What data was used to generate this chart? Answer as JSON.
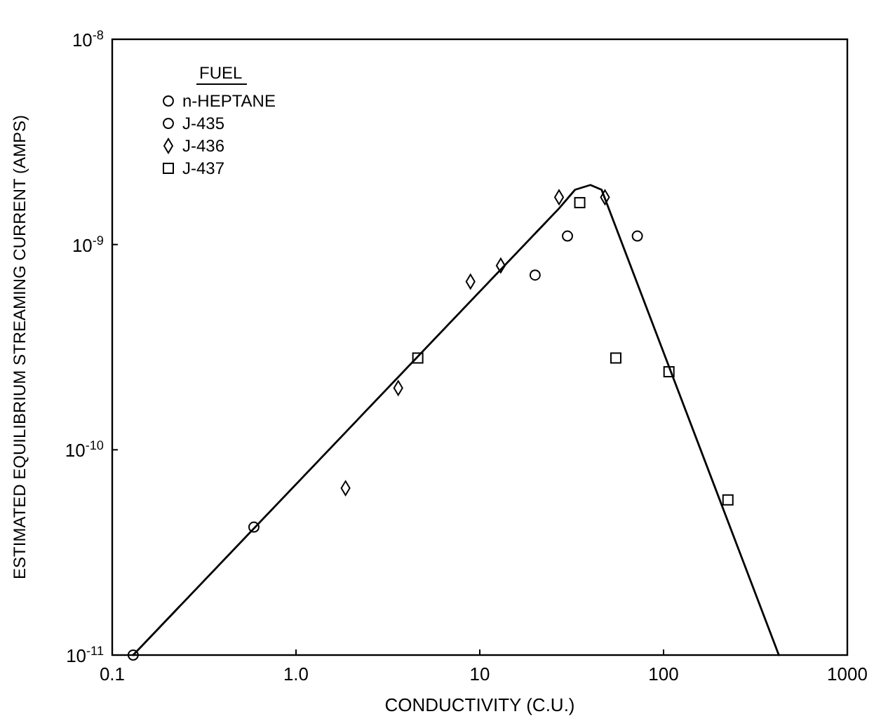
{
  "chart_data": {
    "type": "scatter",
    "xlabel": "CONDUCTIVITY (C.U.)",
    "ylabel": "ESTIMATED EQUILIBRIUM STREAMING CURRENT (AMPS)",
    "legend_title": "FUEL",
    "legend": "top left",
    "log": "xy",
    "grid": false,
    "xlim": [
      0.1,
      1000
    ],
    "xticks": [
      {
        "value": 0.1,
        "label": "0.1"
      },
      {
        "value": 1,
        "label": "1.0"
      },
      10,
      100,
      1000
    ],
    "ylim": [
      1e-11,
      1e-08
    ],
    "yticks": [
      {
        "value": 1e-11,
        "label": "10$^{-11}$"
      },
      {
        "value": 1e-10,
        "label": "10$^{-10}$"
      },
      {
        "value": 1e-09,
        "label": "10$^{-9}$"
      },
      {
        "value": 1e-08,
        "label": "10$^{-8}$"
      }
    ],
    "series": [
      {
        "name": "n-HEPTANE",
        "color": "#000000",
        "marker": "circle",
        "x": [
          0.13
        ],
        "values": [
          1e-11
        ]
      },
      {
        "name": "J-435",
        "color": "#000000",
        "marker": "circle",
        "x": [
          0.59,
          20,
          30,
          72
        ],
        "values": [
          4.2e-11,
          7.1e-10,
          1.1e-09,
          1.1e-09
        ]
      },
      {
        "name": "J-436",
        "color": "#000000",
        "marker": "diamond",
        "x": [
          1.86,
          3.6,
          8.9,
          13,
          27,
          48
        ],
        "values": [
          6.5e-11,
          2e-10,
          6.6e-10,
          7.9e-10,
          1.7e-09,
          1.7e-09
        ]
      },
      {
        "name": "J-437",
        "color": "#000000",
        "marker": "square",
        "x": [
          4.6,
          35,
          55,
          107,
          224
        ],
        "values": [
          2.8e-10,
          1.6e-09,
          2.8e-10,
          2.4e-10,
          5.7e-11
        ]
      },
      {
        "type": "line",
        "color": "#000000",
        "marker": "none",
        "line_style": "solid",
        "x": [
          0.13,
          27,
          33,
          40,
          46,
          424
        ],
        "values": [
          1e-11,
          1.5e-09,
          1.85e-09,
          1.95e-09,
          1.85e-09,
          1e-11
        ]
      }
    ]
  }
}
